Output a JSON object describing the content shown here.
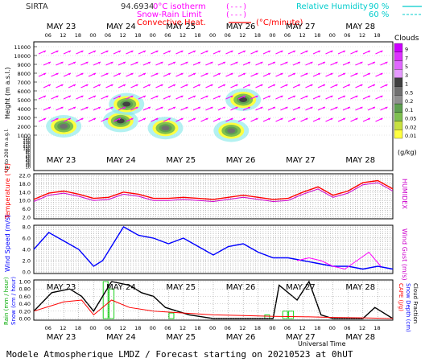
{
  "header": {
    "station": "SIRTA",
    "station_code": "94.6934",
    "legend": [
      {
        "label": "0°C isotherm",
        "color": "#ff00ff"
      },
      {
        "label": "Snow-Rain Limit",
        "color": "#ff00ff"
      },
      {
        "label": "Convective Heat.",
        "color": "#ff0000",
        "unit": "(°C/minute)"
      }
    ],
    "rh_label": "Relative Humidity",
    "rh_levels": [
      "90 %",
      "60 %"
    ],
    "rh_color": "#00e0e0"
  },
  "footer": {
    "title": "Modele Atmospherique LMDZ / Forecast starting on 20210523 at 0hUT",
    "time_axis_label": "Universal Time"
  },
  "days": [
    "MAY 23",
    "MAY 24",
    "MAY 25",
    "MAY 26",
    "MAY 27",
    "MAY 28"
  ],
  "hour_ticks": [
    "06",
    "12",
    "18",
    "00"
  ],
  "chart_data": [
    {
      "type": "heatmap",
      "panel": "clouds",
      "ylabel": "Height (m a.s.l.)",
      "ylabel_low": "Up to 200 m a.g.l.",
      "yticks_upper": [
        1000,
        2000,
        3000,
        4000,
        5000,
        6000,
        7000,
        8000,
        9000,
        10000,
        11000
      ],
      "yticks_lower": [
        10,
        20,
        30,
        40,
        50,
        60,
        70,
        80,
        90,
        100,
        110,
        120,
        130,
        140,
        150
      ],
      "colorbar": {
        "title": "Clouds",
        "unit": "(g/kg)",
        "levels": [
          "9",
          "7",
          "5",
          "3",
          "1",
          "0.5",
          "0.2",
          "0.1",
          "0.05",
          "0.02",
          "0.01"
        ],
        "colors": [
          "#cc00ff",
          "#dd33ff",
          "#e066ff",
          "#e699ff",
          "#404040",
          "#707070",
          "#909090",
          "#5fa050",
          "#7fc050",
          "#c8e040",
          "#ffff40"
        ]
      },
      "cloud_patches": [
        {
          "t": 0.5,
          "h": 2000,
          "level": 0.5
        },
        {
          "t": 1.45,
          "h": 2600,
          "level": 1
        },
        {
          "t": 1.55,
          "h": 4500,
          "level": 1
        },
        {
          "t": 2.2,
          "h": 1800,
          "level": 0.5
        },
        {
          "t": 3.3,
          "h": 1500,
          "level": 0.5
        },
        {
          "t": 3.5,
          "h": 5000,
          "level": 1
        }
      ]
    },
    {
      "type": "line",
      "panel": "temperature",
      "ylabel": "Temperature (°C)",
      "ylabel_right": "HUMIDEX",
      "yticks": [
        2.0,
        6.0,
        10.0,
        14.0,
        18.0,
        22.0
      ],
      "ylim": [
        2,
        22
      ],
      "x_unit": "days since 2021-05-23 00UT",
      "series": [
        {
          "name": "Temperature",
          "color": "#ff0000",
          "x": [
            0.0,
            0.25,
            0.5,
            0.75,
            1.0,
            1.25,
            1.5,
            1.75,
            2.0,
            2.25,
            2.5,
            2.75,
            3.0,
            3.25,
            3.5,
            3.75,
            4.0,
            4.25,
            4.5,
            4.75,
            5.0,
            5.25,
            5.5,
            5.75,
            6.0
          ],
          "values": [
            10.5,
            13.5,
            14.5,
            13.0,
            11.0,
            11.5,
            14.0,
            13.0,
            11.0,
            11.0,
            11.5,
            11.0,
            10.5,
            11.5,
            12.5,
            11.5,
            10.5,
            11.0,
            14.0,
            16.5,
            12.5,
            14.5,
            18.5,
            19.5,
            15.5
          ]
        },
        {
          "name": "HUMIDEX",
          "color": "#cc00cc",
          "x": [
            0.0,
            0.25,
            0.5,
            0.75,
            1.0,
            1.25,
            1.5,
            1.75,
            2.0,
            2.25,
            2.5,
            2.75,
            3.0,
            3.25,
            3.5,
            3.75,
            4.0,
            4.25,
            4.5,
            4.75,
            5.0,
            5.25,
            5.5,
            5.75,
            6.0
          ],
          "values": [
            9.5,
            12.5,
            13.5,
            12.0,
            10.0,
            10.5,
            13.0,
            12.0,
            10.0,
            10.0,
            10.5,
            10.0,
            9.5,
            10.5,
            11.5,
            10.5,
            9.5,
            10.0,
            13.0,
            15.5,
            11.5,
            13.5,
            17.5,
            18.5,
            14.5
          ]
        }
      ]
    },
    {
      "type": "line",
      "panel": "wind",
      "ylabel": "Wind Speed (m/s)",
      "ylabel_right": "Wind Gust (m/s)",
      "yticks": [
        0.0,
        2.0,
        4.0,
        6.0,
        8.0
      ],
      "ylim": [
        0,
        8
      ],
      "x_unit": "days since 2021-05-23 00UT",
      "series": [
        {
          "name": "Wind Speed",
          "color": "#0000ff",
          "x": [
            0.0,
            0.25,
            0.5,
            0.75,
            1.0,
            1.15,
            1.5,
            1.75,
            2.0,
            2.25,
            2.5,
            2.75,
            3.0,
            3.25,
            3.5,
            3.75,
            4.0,
            4.25,
            4.5,
            4.75,
            5.0,
            5.25,
            5.5,
            5.75,
            6.0
          ],
          "values": [
            4.0,
            7.0,
            5.5,
            4.0,
            1.0,
            2.0,
            8.0,
            6.5,
            6.0,
            5.0,
            6.0,
            4.5,
            3.0,
            4.5,
            5.0,
            3.5,
            2.5,
            2.5,
            2.0,
            1.5,
            1.0,
            1.0,
            0.5,
            1.0,
            0.5
          ]
        },
        {
          "name": "Wind Gust",
          "color": "#ff00ff",
          "x": [
            4.4,
            4.6,
            4.8,
            5.0,
            5.2,
            5.4,
            5.6,
            5.8
          ],
          "values": [
            2.0,
            2.5,
            2.0,
            1.0,
            0.5,
            2.0,
            3.5,
            1.0
          ]
        }
      ]
    },
    {
      "type": "bar",
      "panel": "precipitation",
      "ylabel": "Rain (mm / hour)",
      "ylabel_2": "Snow (cm / hour)",
      "ylabel_right": [
        "CAPE (J/g)",
        "Snow Depth (cm)",
        "Cloud Fraction"
      ],
      "yticks": [
        0.0,
        0.2,
        0.4,
        0.6,
        0.8,
        1.0
      ],
      "ylim": [
        0,
        1
      ],
      "x_unit": "days since 2021-05-23 00UT",
      "rain_bars": [
        {
          "x": 1.2,
          "value": 1.0
        },
        {
          "x": 1.3,
          "value": 0.8
        },
        {
          "x": 2.3,
          "value": 0.15
        },
        {
          "x": 3.9,
          "value": 0.1
        },
        {
          "x": 4.2,
          "value": 0.2
        },
        {
          "x": 4.3,
          "value": 0.2
        }
      ],
      "series": [
        {
          "name": "Cloud Fraction",
          "color": "#000000",
          "x": [
            0.0,
            0.3,
            0.6,
            0.8,
            1.0,
            1.3,
            1.6,
            1.8,
            2.0,
            2.2,
            2.6,
            3.0,
            3.3,
            3.6,
            3.9,
            4.0,
            4.1,
            4.4,
            4.6,
            4.8,
            5.0,
            5.3,
            5.5,
            5.7,
            6.0
          ],
          "values": [
            0.2,
            0.7,
            0.8,
            0.6,
            0.2,
            1.0,
            0.9,
            0.7,
            0.6,
            0.3,
            0.1,
            0.0,
            0.0,
            0.0,
            0.0,
            0.0,
            0.9,
            0.5,
            1.0,
            0.1,
            0.0,
            0.0,
            0.0,
            0.3,
            0.0
          ]
        },
        {
          "name": "CAPE",
          "color": "#ff0000",
          "x": [
            0.0,
            0.5,
            0.8,
            1.0,
            1.3,
            1.6,
            2.0,
            2.5,
            3.0,
            3.5,
            4.0,
            4.5,
            5.0,
            5.5,
            6.0
          ],
          "values": [
            0.2,
            0.45,
            0.5,
            0.1,
            0.5,
            0.3,
            0.2,
            0.15,
            0.1,
            0.08,
            0.06,
            0.05,
            0.03,
            0.02,
            0.0
          ]
        }
      ]
    }
  ]
}
